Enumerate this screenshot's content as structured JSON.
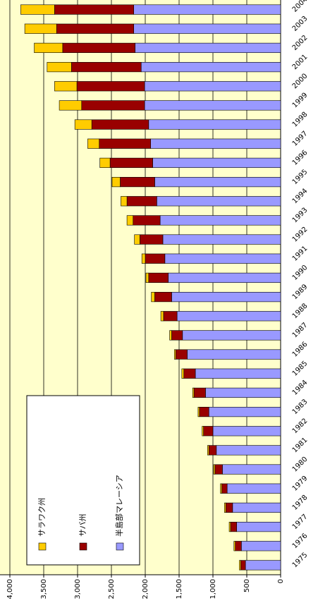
{
  "chart_data": {
    "type": "bar",
    "stacked": true,
    "categories": [
      "1975",
      "1976",
      "1977",
      "1978",
      "1979",
      "1980",
      "1981",
      "1982",
      "1983",
      "1984",
      "1985",
      "1986",
      "1987",
      "1988",
      "1989",
      "1990",
      "1991",
      "1992",
      "1993",
      "1994",
      "1995",
      "1996",
      "1997",
      "1998",
      "1999",
      "2000",
      "2001",
      "2002",
      "2003",
      "2004"
    ],
    "series": [
      {
        "name": "半島部マレーシア",
        "color": "#9999ff",
        "values": [
          520,
          580,
          650,
          710,
          790,
          860,
          950,
          1000,
          1060,
          1110,
          1260,
          1380,
          1450,
          1530,
          1610,
          1660,
          1710,
          1740,
          1780,
          1830,
          1860,
          1890,
          1920,
          1950,
          2010,
          2010,
          2060,
          2150,
          2170,
          2170
        ]
      },
      {
        "name": "サバ州",
        "color": "#990000",
        "values": [
          70,
          90,
          90,
          100,
          80,
          110,
          110,
          140,
          140,
          170,
          170,
          170,
          160,
          200,
          250,
          290,
          290,
          340,
          400,
          440,
          510,
          630,
          760,
          840,
          930,
          1000,
          1030,
          1070,
          1140,
          1170
        ]
      },
      {
        "name": "サラワク州",
        "color": "#ffcc00",
        "values": [
          20,
          20,
          20,
          20,
          20,
          20,
          20,
          20,
          20,
          20,
          30,
          20,
          30,
          40,
          50,
          40,
          50,
          80,
          90,
          90,
          120,
          150,
          170,
          250,
          330,
          330,
          360,
          420,
          470,
          500
        ]
      }
    ],
    "ylim": [
      0,
      4000
    ],
    "yticks": [
      0,
      500,
      {
        "value": 1000,
        "label": "1,000"
      },
      {
        "value": 1500,
        "label": "1,500"
      },
      {
        "value": 2000,
        "label": "2,000"
      },
      {
        "value": 2500,
        "label": "2,500"
      },
      {
        "value": 3000,
        "label": "3,000"
      },
      {
        "value": 3500,
        "label": "3,500"
      },
      {
        "value": 4000,
        "label": "4,000"
      }
    ],
    "grid": true,
    "legend": "left",
    "plot_background": "#ffffcc"
  }
}
